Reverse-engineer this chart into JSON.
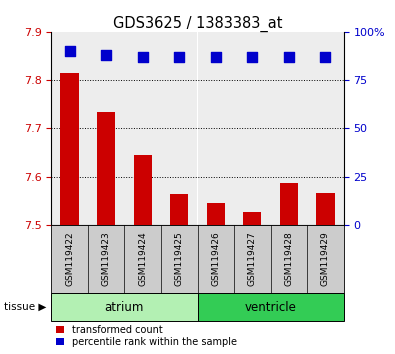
{
  "title": "GDS3625 / 1383383_at",
  "samples": [
    "GSM119422",
    "GSM119423",
    "GSM119424",
    "GSM119425",
    "GSM119426",
    "GSM119427",
    "GSM119428",
    "GSM119429"
  ],
  "transformed_counts": [
    7.815,
    7.735,
    7.645,
    7.565,
    7.545,
    7.527,
    7.587,
    7.567
  ],
  "percentile_ranks": [
    90,
    88,
    87,
    87,
    87,
    87,
    87,
    87
  ],
  "ylim_left": [
    7.5,
    7.9
  ],
  "ylim_right": [
    0,
    100
  ],
  "yticks_left": [
    7.5,
    7.6,
    7.7,
    7.8,
    7.9
  ],
  "yticks_right": [
    0,
    25,
    50,
    75,
    100
  ],
  "grid_lines": [
    7.6,
    7.7,
    7.8
  ],
  "bar_color": "#cc0000",
  "dot_color": "#0000cc",
  "bar_bottom": 7.5,
  "tissue_groups": [
    {
      "label": "atrium",
      "start": 0,
      "end": 4,
      "color": "#b3f0b3"
    },
    {
      "label": "ventricle",
      "start": 4,
      "end": 8,
      "color": "#33cc55"
    }
  ],
  "tissue_label": "tissue",
  "legend_items": [
    {
      "label": "transformed count",
      "color": "#cc0000"
    },
    {
      "label": "percentile rank within the sample",
      "color": "#0000cc"
    }
  ],
  "bg_color": "#ffffff",
  "tick_label_color_left": "#cc0000",
  "tick_label_color_right": "#0000cc",
  "title_color": "#000000",
  "bar_width": 0.5,
  "dot_size": 45,
  "sample_box_color": "#cccccc",
  "col_sep_color": "#000000"
}
